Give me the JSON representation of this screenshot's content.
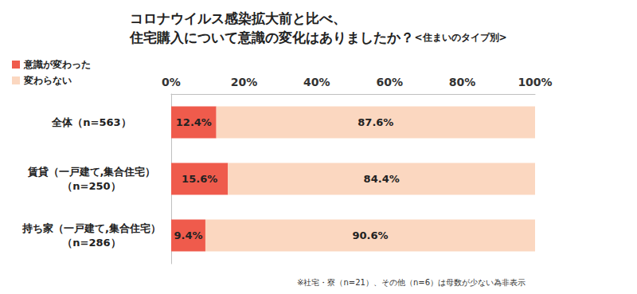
{
  "chart_data": {
    "type": "bar",
    "title": "コロナウイルス感染拡大前と比べ、\n住宅購入について意識の変化はありましたか？",
    "subtitle": "<住まいのタイプ別>",
    "orientation": "horizontal",
    "stacked": true,
    "data_labels": true,
    "grid": false,
    "legend": "upper left",
    "categories": [
      "全体（n=563）",
      "賃貸（一戸建て,集合住宅）\n（n=250）",
      "持ち家（一戸建て,集合住宅）\n（n=286）"
    ],
    "series": [
      {
        "name": "意識が変わった",
        "color": "#ef5b4c",
        "values": [
          12.4,
          15.6,
          9.4
        ],
        "value_labels": [
          "12.4%",
          "15.6%",
          "9.4%"
        ]
      },
      {
        "name": "変わらない",
        "color": "#fbd7c0",
        "values": [
          87.6,
          84.4,
          90.6
        ],
        "value_labels": [
          "87.6%",
          "84.4%",
          "90.6%"
        ]
      }
    ],
    "xlim": [
      0,
      100
    ],
    "xticks": [
      {
        "value": 0,
        "label": "0%"
      },
      {
        "value": 20,
        "label": "20%"
      },
      {
        "value": 40,
        "label": "40%"
      },
      {
        "value": 60,
        "label": "60%"
      },
      {
        "value": 80,
        "label": "80%"
      },
      {
        "value": 100,
        "label": "100%"
      }
    ],
    "annotations": [
      "※社宅・寮（n=21）、その他（n=6）は母数が少ない為非表示"
    ]
  }
}
